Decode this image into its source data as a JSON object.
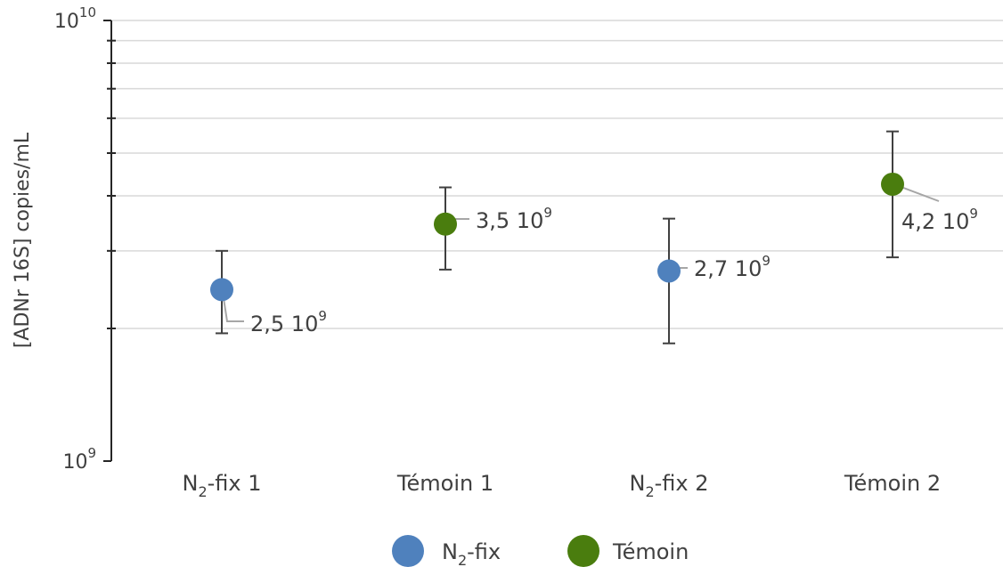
{
  "chart_data": {
    "type": "scatter",
    "ylabel": "[ADNr 16S] copies/mL",
    "yscale": "log",
    "ylim": [
      1000000000,
      10000000000
    ],
    "y_ticks": [
      {
        "base": "10",
        "exp": "9",
        "value": 1000000000
      },
      {
        "base": "10",
        "exp": "10",
        "value": 10000000000
      }
    ],
    "grid": true,
    "legend_position": "bottom",
    "categories": [
      {
        "base": "N",
        "sub": "2",
        "rest": "-fix 1"
      },
      {
        "base": "Témoin 1",
        "sub": "",
        "rest": ""
      },
      {
        "base": "N",
        "sub": "2",
        "rest": "-fix 2"
      },
      {
        "base": "Témoin 2",
        "sub": "",
        "rest": ""
      }
    ],
    "series": [
      {
        "base": "N",
        "sub": "2",
        "rest": "-fix",
        "color": "#4f81bd"
      },
      {
        "base": "Témoin",
        "sub": "",
        "rest": "",
        "color": "#4a7d0e"
      }
    ],
    "points": [
      {
        "category": 0,
        "series": 0,
        "value": 2450000000,
        "err_low": 1950000000,
        "err_high": 3000000000,
        "label": "2,5 10",
        "label_exp": "9"
      },
      {
        "category": 1,
        "series": 1,
        "value": 3450000000,
        "err_low": 2720000000,
        "err_high": 4180000000,
        "label": "3,5 10",
        "label_exp": "9"
      },
      {
        "category": 2,
        "series": 0,
        "value": 2700000000,
        "err_low": 1850000000,
        "err_high": 3550000000,
        "label": "2,7 10",
        "label_exp": "9"
      },
      {
        "category": 3,
        "series": 1,
        "value": 4250000000,
        "err_low": 2900000000,
        "err_high": 5600000000,
        "label": "4,2 10",
        "label_exp": "9"
      }
    ]
  }
}
